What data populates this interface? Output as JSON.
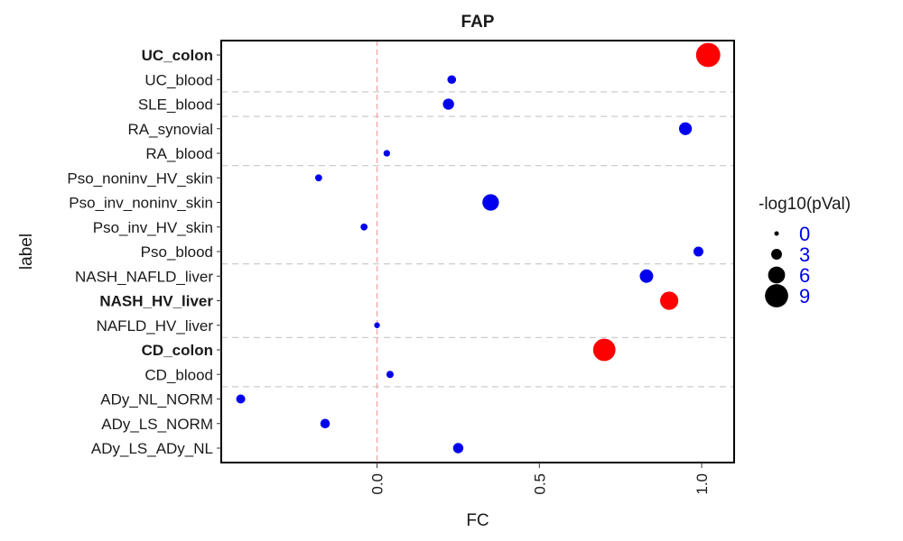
{
  "chart_data": {
    "type": "scatter",
    "title": "FAP",
    "xlabel": "FC",
    "ylabel": "label",
    "xlim": [
      -0.48,
      1.1
    ],
    "x_ticks": [
      {
        "value": 0.0,
        "label": "0.0"
      },
      {
        "value": 0.5,
        "label": "0.5"
      },
      {
        "value": 1.0,
        "label": "1.0"
      }
    ],
    "reference_line_x": 0,
    "grid": false,
    "legend": {
      "title": "-log10(pVal)",
      "placement": "right",
      "entries": [
        {
          "value": 0,
          "label": "0"
        },
        {
          "value": 3,
          "label": "3"
        },
        {
          "value": 6,
          "label": "6"
        },
        {
          "value": 9,
          "label": "9"
        }
      ]
    },
    "separators_after": [
      "UC_blood",
      "SLE_blood",
      "RA_blood",
      "Pso_blood",
      "NAFLD_HV_liver",
      "CD_blood"
    ],
    "points": [
      {
        "label": "UC_colon",
        "fc": 1.02,
        "neglog10p": 9.5,
        "significant": true
      },
      {
        "label": "UC_blood",
        "fc": 0.23,
        "neglog10p": 2.0,
        "significant": false
      },
      {
        "label": "SLE_blood",
        "fc": 0.22,
        "neglog10p": 3.2,
        "significant": false
      },
      {
        "label": "RA_synovial",
        "fc": 0.95,
        "neglog10p": 4.0,
        "significant": false
      },
      {
        "label": "RA_blood",
        "fc": 0.03,
        "neglog10p": 1.0,
        "significant": false
      },
      {
        "label": "Pso_noninv_HV_skin",
        "fc": -0.18,
        "neglog10p": 1.2,
        "significant": false
      },
      {
        "label": "Pso_inv_noninv_skin",
        "fc": 0.35,
        "neglog10p": 5.8,
        "significant": false
      },
      {
        "label": "Pso_inv_HV_skin",
        "fc": -0.04,
        "neglog10p": 1.2,
        "significant": false
      },
      {
        "label": "Pso_blood",
        "fc": 0.99,
        "neglog10p": 2.6,
        "significant": false
      },
      {
        "label": "NASH_NAFLD_liver",
        "fc": 0.83,
        "neglog10p": 4.3,
        "significant": false
      },
      {
        "label": "NASH_HV_liver",
        "fc": 0.9,
        "neglog10p": 6.6,
        "significant": true
      },
      {
        "label": "NAFLD_HV_liver",
        "fc": 0.0,
        "neglog10p": 0.6,
        "significant": false
      },
      {
        "label": "CD_colon",
        "fc": 0.7,
        "neglog10p": 8.6,
        "significant": true
      },
      {
        "label": "CD_blood",
        "fc": 0.04,
        "neglog10p": 1.3,
        "significant": false
      },
      {
        "label": "ADy_NL_NORM",
        "fc": -0.42,
        "neglog10p": 2.2,
        "significant": false
      },
      {
        "label": "ADy_LS_NORM",
        "fc": -0.16,
        "neglog10p": 2.4,
        "significant": false
      },
      {
        "label": "ADy_LS_ADy_NL",
        "fc": 0.25,
        "neglog10p": 2.8,
        "significant": false
      }
    ],
    "colors": {
      "significant": "#ff0000",
      "non_significant": "#0000ee",
      "reference_line": "#f4a3a3",
      "separator": "#cccccc",
      "legend_labels": "#0000ee",
      "legend_keys": "#000000"
    }
  }
}
